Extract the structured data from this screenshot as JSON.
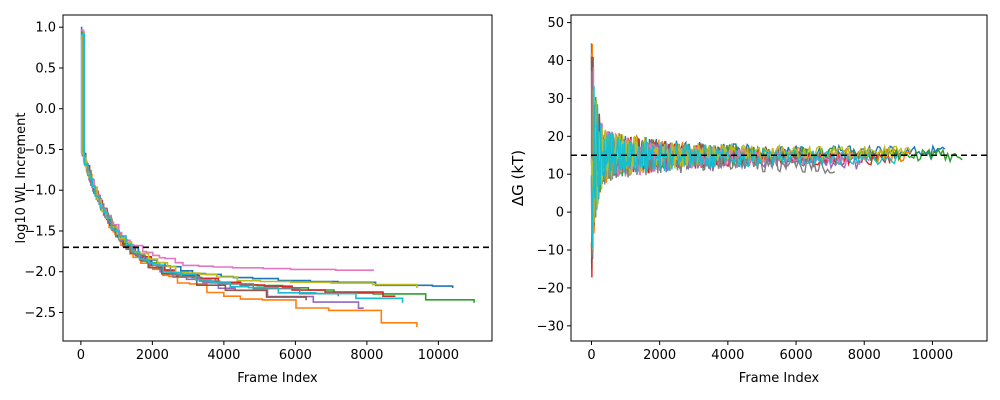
{
  "chart_data": [
    {
      "type": "line",
      "title": "",
      "xlabel": "Frame Index",
      "ylabel": "log10 WL Increment",
      "xlim": [
        -500,
        11500
      ],
      "ylim": [
        -2.85,
        1.15
      ],
      "xticks": [
        0,
        2000,
        4000,
        6000,
        8000,
        10000
      ],
      "yticks": [
        1.0,
        0.5,
        0.0,
        -0.5,
        -1.0,
        -1.5,
        -2.0,
        -2.5
      ],
      "ytick_labels": [
        "1.0",
        "0.5",
        "0.0",
        "−0.5",
        "−1.0",
        "−1.5",
        "−2.0",
        "−2.5"
      ],
      "hline": -1.7,
      "series": [
        {
          "color": "#1f77b4",
          "final_x": 10400,
          "final_y": -2.2
        },
        {
          "color": "#ff7f0e",
          "final_x": 9400,
          "final_y": -2.68
        },
        {
          "color": "#2ca02c",
          "final_x": 11000,
          "final_y": -2.38
        },
        {
          "color": "#d62728",
          "final_x": 8800,
          "final_y": -2.3
        },
        {
          "color": "#9467bd",
          "final_x": 7900,
          "final_y": -2.45
        },
        {
          "color": "#8c564b",
          "final_x": 6300,
          "final_y": -2.35
        },
        {
          "color": "#e377c2",
          "final_x": 8200,
          "final_y": -1.91
        },
        {
          "color": "#7f7f7f",
          "final_x": 7200,
          "final_y": -2.3
        },
        {
          "color": "#bcbd22",
          "final_x": 9400,
          "final_y": -2.2
        },
        {
          "color": "#17becf",
          "final_x": 9000,
          "final_y": -2.38
        }
      ]
    },
    {
      "type": "line",
      "title": "",
      "xlabel": "Frame Index",
      "ylabel": "ΔG (kT)",
      "xlim": [
        -600,
        11600
      ],
      "ylim": [
        -34,
        52
      ],
      "xticks": [
        0,
        2000,
        4000,
        6000,
        8000,
        10000
      ],
      "yticks": [
        50,
        40,
        30,
        20,
        10,
        0,
        -10,
        -20,
        -30
      ],
      "ytick_labels": [
        "50",
        "40",
        "30",
        "20",
        "10",
        "0",
        "−10",
        "−20",
        "−30"
      ],
      "hline": 15,
      "series": [
        {
          "color": "#1f77b4",
          "final_x": 10400,
          "final_y": 16
        },
        {
          "color": "#ff7f0e",
          "final_x": 9400,
          "final_y": 15
        },
        {
          "color": "#2ca02c",
          "final_x": 10900,
          "final_y": 15
        },
        {
          "color": "#d62728",
          "final_x": 8800,
          "final_y": 14
        },
        {
          "color": "#9467bd",
          "final_x": 7900,
          "final_y": 13
        },
        {
          "color": "#8c564b",
          "final_x": 6300,
          "final_y": 15
        },
        {
          "color": "#e377c2",
          "final_x": 8200,
          "final_y": 14
        },
        {
          "color": "#7f7f7f",
          "final_x": 7200,
          "final_y": 12
        },
        {
          "color": "#bcbd22",
          "final_x": 9400,
          "final_y": 16
        },
        {
          "color": "#17becf",
          "final_x": 9000,
          "final_y": 14
        }
      ]
    }
  ]
}
